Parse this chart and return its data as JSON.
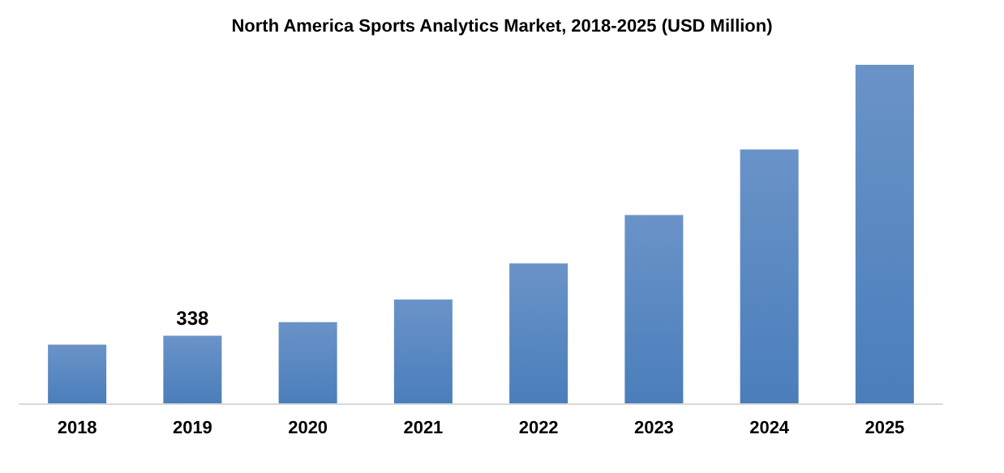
{
  "chart_data": {
    "type": "bar",
    "title": "North America Sports Analytics Market, 2018-2025 (USD Million)",
    "categories": [
      "2018",
      "2019",
      "2020",
      "2021",
      "2022",
      "2023",
      "2024",
      "2025"
    ],
    "values": [
      294,
      338,
      406,
      519,
      700,
      942,
      1270,
      1693
    ],
    "value_labels": [
      null,
      "338",
      null,
      null,
      null,
      null,
      null,
      null
    ],
    "color": "#4a7ebb"
  }
}
